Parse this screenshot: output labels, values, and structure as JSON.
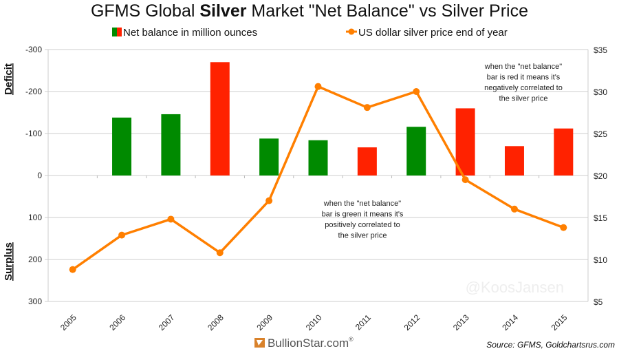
{
  "chart_data": {
    "type": "bar+line",
    "title_parts": [
      "GFMS Global ",
      "Silver",
      " Market \"Net Balance\" vs Silver Price"
    ],
    "categories": [
      "2005",
      "2006",
      "2007",
      "2008",
      "2009",
      "2010",
      "2011",
      "2012",
      "2013",
      "2014",
      "2015"
    ],
    "series": [
      {
        "name": "Net balance in million ounces",
        "type": "bar",
        "axis": "left",
        "values": [
          null,
          -138,
          -146,
          -270,
          -88,
          -84,
          -67,
          -116,
          -160,
          -70,
          -112
        ],
        "colors": [
          null,
          "#008a00",
          "#008a00",
          "#ff2200",
          "#008a00",
          "#008a00",
          "#ff2200",
          "#008a00",
          "#ff2200",
          "#ff2200",
          "#ff2200"
        ]
      },
      {
        "name": "US dollar silver price end of year",
        "type": "line",
        "axis": "right",
        "color": "#ff7f00",
        "values": [
          8.8,
          12.9,
          14.8,
          10.8,
          17.0,
          30.6,
          28.1,
          30.0,
          19.5,
          16.0,
          13.8
        ]
      }
    ],
    "left_axis": {
      "range": [
        -300,
        300
      ],
      "inverted": true,
      "ticks": [
        "-300",
        "-200",
        "-100",
        "0",
        "100",
        "200",
        "300"
      ],
      "tick_values": [
        -300,
        -200,
        -100,
        0,
        100,
        200,
        300
      ]
    },
    "right_axis": {
      "range": [
        5,
        35
      ],
      "ticks": [
        "$35",
        "$30",
        "$25",
        "$20",
        "$15",
        "$10",
        "$5"
      ],
      "tick_values": [
        35,
        30,
        25,
        20,
        15,
        10,
        5
      ]
    },
    "ylabel_top": "Deficit",
    "ylabel_bottom": "Surplus",
    "legend_placement": "top",
    "grid": true,
    "annotations": {
      "red": [
        "when the \"net balance\"",
        "bar is red it means it's",
        "negatively correlated to",
        "the silver price"
      ],
      "green": [
        "when the \"net balance\"",
        "bar is green it means it's",
        "positively correlated to",
        "the silver price"
      ]
    },
    "watermark": "@KoosJansen",
    "logo": "BullionStar.com",
    "source": "Source: GFMS, Goldchartsrus.com"
  }
}
